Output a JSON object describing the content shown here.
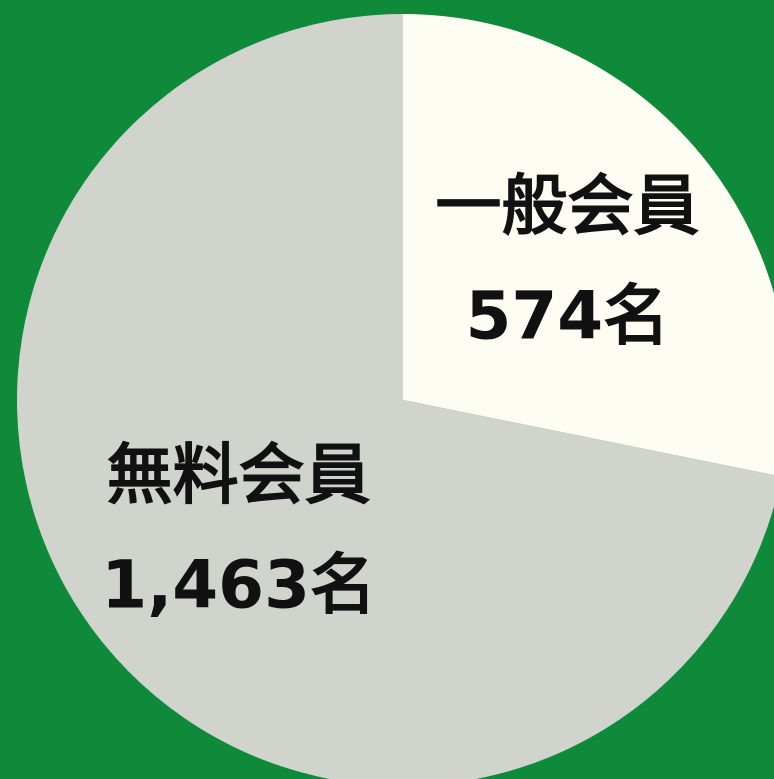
{
  "chart_data": {
    "type": "pie",
    "categories": [
      "一般会員",
      "無料会員"
    ],
    "values": [
      574,
      1463
    ],
    "value_labels": [
      "574名",
      "1,463名"
    ],
    "colors": [
      "#fdfdf3",
      "#d0d4cd"
    ]
  }
}
